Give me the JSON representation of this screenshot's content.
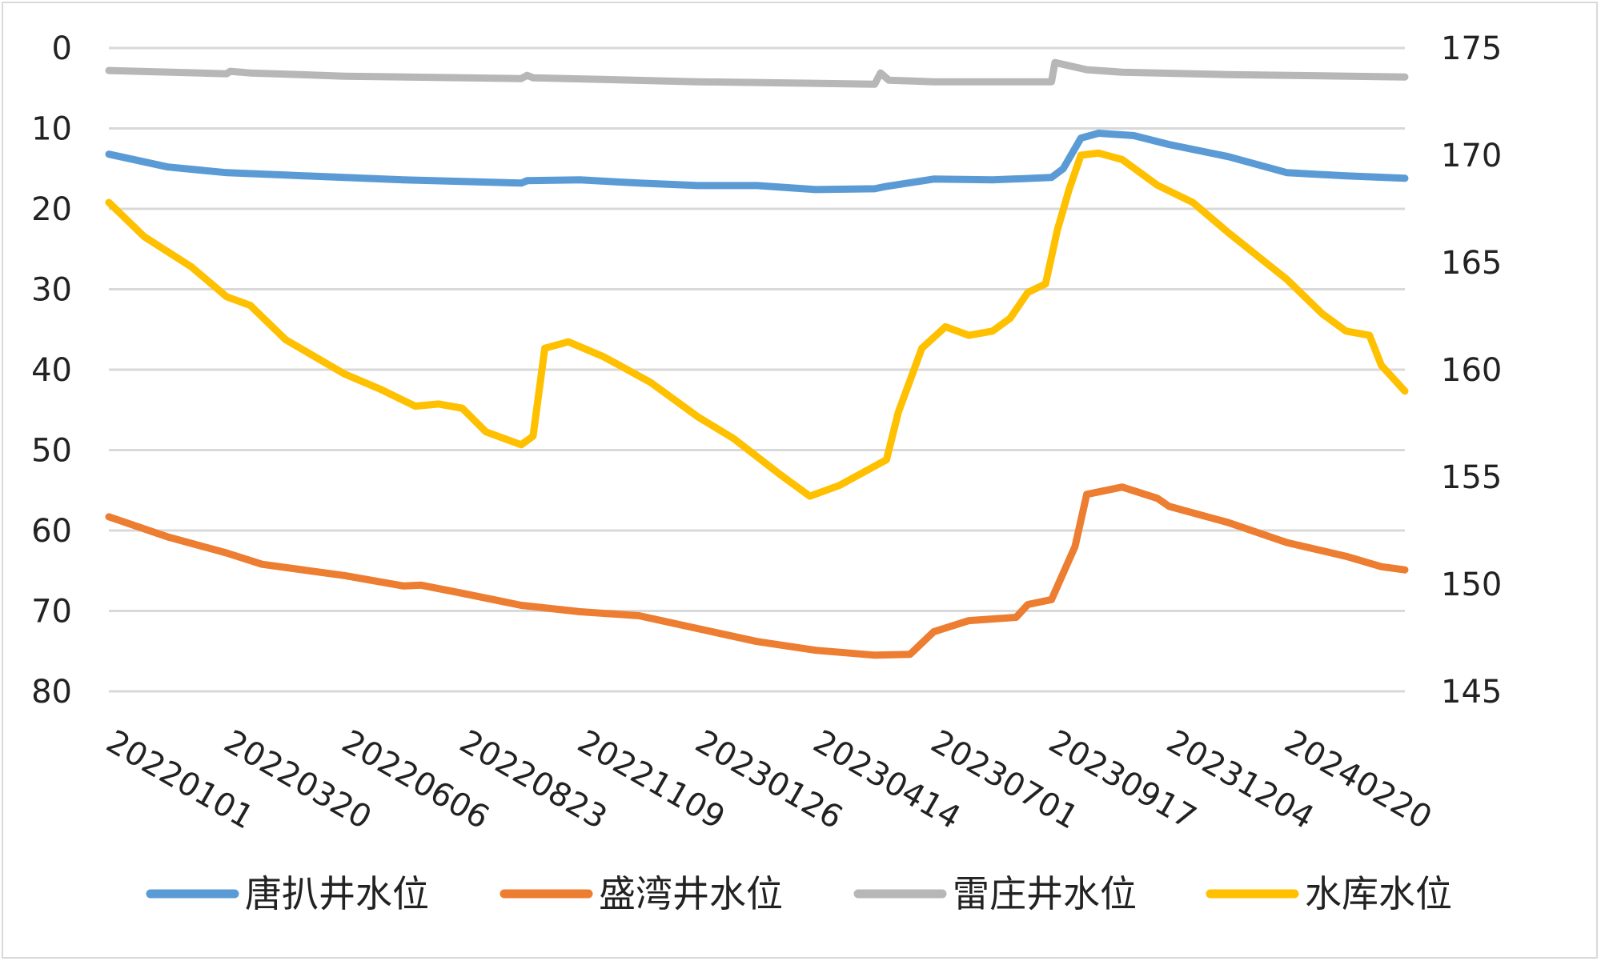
{
  "chart_data": {
    "type": "line",
    "x_ticks": [
      "20220101",
      "20220320",
      "20220606",
      "20220823",
      "20221109",
      "20230126",
      "20230414",
      "20230701",
      "20230917",
      "20231204",
      "20240220"
    ],
    "x_range": [
      0,
      11
    ],
    "y_left": {
      "ticks": [
        "0",
        "10",
        "20",
        "30",
        "40",
        "50",
        "60",
        "70",
        "80"
      ],
      "range": [
        0,
        80
      ],
      "inverted": true
    },
    "y_right": {
      "ticks": [
        "175",
        "170",
        "165",
        "160",
        "155",
        "150",
        "145"
      ],
      "range": [
        145,
        175
      ]
    },
    "grid": "horizontal",
    "legend_position": "bottom",
    "series": [
      {
        "name": "唐扒井水位",
        "axis": "left",
        "color": "#5B9BD5",
        "points": [
          [
            0,
            13.2
          ],
          [
            0.5,
            14.8
          ],
          [
            1,
            15.5
          ],
          [
            1.5,
            15.8
          ],
          [
            2,
            16.1
          ],
          [
            2.5,
            16.4
          ],
          [
            3,
            16.6
          ],
          [
            3.5,
            16.8
          ],
          [
            3.55,
            16.5
          ],
          [
            4,
            16.4
          ],
          [
            4.5,
            16.8
          ],
          [
            5,
            17.1
          ],
          [
            5.5,
            17.1
          ],
          [
            6,
            17.6
          ],
          [
            6.5,
            17.5
          ],
          [
            6.6,
            17.2
          ],
          [
            7,
            16.3
          ],
          [
            7.5,
            16.4
          ],
          [
            8,
            16.1
          ],
          [
            8.1,
            15
          ],
          [
            8.25,
            11.2
          ],
          [
            8.4,
            10.6
          ],
          [
            8.7,
            10.9
          ],
          [
            9,
            12
          ],
          [
            9.5,
            13.5
          ],
          [
            10,
            15.5
          ],
          [
            10.5,
            15.9
          ],
          [
            11,
            16.2
          ]
        ]
      },
      {
        "name": "盛湾井水位",
        "axis": "left",
        "color": "#ED7D31",
        "points": [
          [
            0,
            58.3
          ],
          [
            0.5,
            60.8
          ],
          [
            1,
            62.8
          ],
          [
            1.3,
            64.2
          ],
          [
            1.7,
            65
          ],
          [
            2,
            65.6
          ],
          [
            2.5,
            66.9
          ],
          [
            2.65,
            66.8
          ],
          [
            3,
            67.8
          ],
          [
            3.5,
            69.3
          ],
          [
            4,
            70.1
          ],
          [
            4.5,
            70.6
          ],
          [
            5,
            72.2
          ],
          [
            5.5,
            73.8
          ],
          [
            6,
            74.9
          ],
          [
            6.5,
            75.5
          ],
          [
            6.8,
            75.4
          ],
          [
            7,
            72.6
          ],
          [
            7.3,
            71.2
          ],
          [
            7.7,
            70.8
          ],
          [
            7.8,
            69.2
          ],
          [
            8,
            68.6
          ],
          [
            8.2,
            62
          ],
          [
            8.3,
            55.5
          ],
          [
            8.6,
            54.6
          ],
          [
            8.9,
            56
          ],
          [
            9,
            57
          ],
          [
            9.5,
            59
          ],
          [
            10,
            61.5
          ],
          [
            10.5,
            63.2
          ],
          [
            10.8,
            64.5
          ],
          [
            11,
            64.9
          ]
        ]
      },
      {
        "name": "雷庄井水位",
        "axis": "left",
        "color": "#B7B7B7",
        "points": [
          [
            0,
            2.8
          ],
          [
            1,
            3.2
          ],
          [
            1.03,
            2.9
          ],
          [
            1.2,
            3.1
          ],
          [
            2,
            3.5
          ],
          [
            3.5,
            3.8
          ],
          [
            3.55,
            3.4
          ],
          [
            3.6,
            3.7
          ],
          [
            5,
            4.2
          ],
          [
            6.5,
            4.5
          ],
          [
            6.55,
            3.1
          ],
          [
            6.62,
            4
          ],
          [
            7,
            4.2
          ],
          [
            8,
            4.2
          ],
          [
            8.03,
            1.8
          ],
          [
            8.3,
            2.7
          ],
          [
            8.6,
            3
          ],
          [
            9.5,
            3.3
          ],
          [
            11,
            3.6
          ]
        ]
      },
      {
        "name": "水库水位",
        "axis": "right",
        "color": "#FFC000",
        "points": [
          [
            0,
            167.8
          ],
          [
            0.3,
            166.2
          ],
          [
            0.7,
            164.8
          ],
          [
            1,
            163.4
          ],
          [
            1.2,
            163.0
          ],
          [
            1.5,
            161.4
          ],
          [
            2,
            159.8
          ],
          [
            2.3,
            159.1
          ],
          [
            2.6,
            158.3
          ],
          [
            2.8,
            158.4
          ],
          [
            3,
            158.2
          ],
          [
            3.2,
            157.1
          ],
          [
            3.5,
            156.5
          ],
          [
            3.6,
            156.9
          ],
          [
            3.7,
            161
          ],
          [
            3.9,
            161.3
          ],
          [
            4.2,
            160.6
          ],
          [
            4.6,
            159.4
          ],
          [
            5,
            157.8
          ],
          [
            5.3,
            156.8
          ],
          [
            5.7,
            155.1
          ],
          [
            5.95,
            154.1
          ],
          [
            6.2,
            154.6
          ],
          [
            6.5,
            155.5
          ],
          [
            6.6,
            155.8
          ],
          [
            6.7,
            158
          ],
          [
            6.9,
            161
          ],
          [
            7.1,
            162
          ],
          [
            7.3,
            161.6
          ],
          [
            7.5,
            161.8
          ],
          [
            7.65,
            162.4
          ],
          [
            7.8,
            163.6
          ],
          [
            7.95,
            164
          ],
          [
            8.05,
            166.5
          ],
          [
            8.15,
            168.4
          ],
          [
            8.25,
            170
          ],
          [
            8.4,
            170.1
          ],
          [
            8.6,
            169.8
          ],
          [
            8.9,
            168.6
          ],
          [
            9.2,
            167.8
          ],
          [
            9.5,
            166.4
          ],
          [
            10,
            164.2
          ],
          [
            10.3,
            162.6
          ],
          [
            10.5,
            161.8
          ],
          [
            10.7,
            161.6
          ],
          [
            10.8,
            160.2
          ],
          [
            11,
            159
          ]
        ]
      }
    ]
  }
}
